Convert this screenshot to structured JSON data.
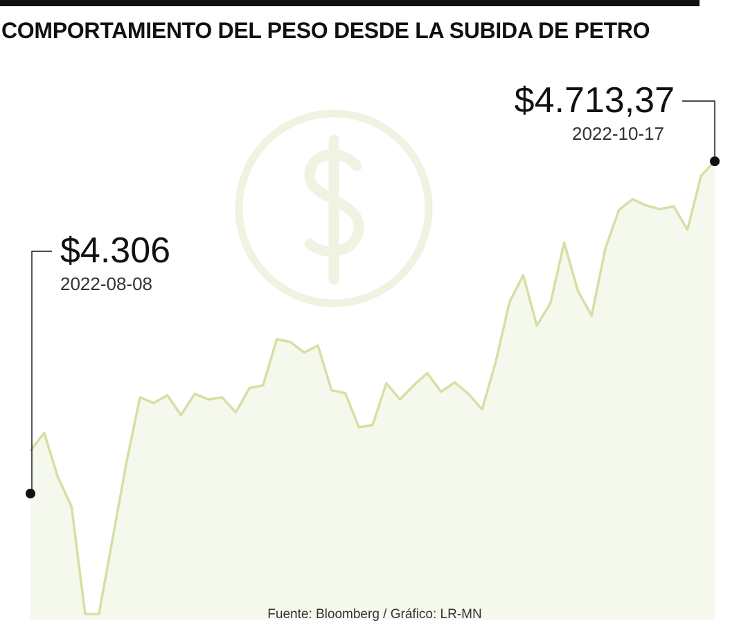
{
  "header": {
    "title": "COMPORTAMIENTO DEL PESO DESDE LA SUBIDA DE PETRO"
  },
  "footer": {
    "source": "Fuente: Bloomberg / Gráfico: LR-MN"
  },
  "annotations": {
    "start": {
      "value": "$4.306",
      "date": "2022-08-08"
    },
    "end": {
      "value": "$4.713,37",
      "date": "2022-10-17"
    }
  },
  "colors": {
    "line": "#d4e0a4",
    "fill": "#f5f8ec",
    "watermark": "#eef3e2",
    "text": "#111111"
  },
  "background_icon": "dollar-coin-icon",
  "chart_data": {
    "type": "area",
    "title": "COMPORTAMIENTO DEL PESO DESDE LA SUBIDA DE PETRO",
    "xlabel": "",
    "ylabel": "",
    "grid": false,
    "legend": "none",
    "ylim": [
      4060,
      4800
    ],
    "x": [
      "2022-08-08",
      "2022-08-09",
      "2022-08-10",
      "2022-08-11",
      "2022-08-12",
      "2022-08-15",
      "2022-08-16",
      "2022-08-17",
      "2022-08-18",
      "2022-08-19",
      "2022-08-22",
      "2022-08-23",
      "2022-08-24",
      "2022-08-25",
      "2022-08-26",
      "2022-08-29",
      "2022-08-30",
      "2022-08-31",
      "2022-09-01",
      "2022-09-02",
      "2022-09-05",
      "2022-09-06",
      "2022-09-07",
      "2022-09-08",
      "2022-09-09",
      "2022-09-12",
      "2022-09-13",
      "2022-09-14",
      "2022-09-15",
      "2022-09-16",
      "2022-09-19",
      "2022-09-20",
      "2022-09-21",
      "2022-09-22",
      "2022-09-23",
      "2022-09-26",
      "2022-09-27",
      "2022-09-28",
      "2022-09-29",
      "2022-09-30",
      "2022-10-03",
      "2022-10-04",
      "2022-10-05",
      "2022-10-06",
      "2022-10-07",
      "2022-10-10",
      "2022-10-11",
      "2022-10-12",
      "2022-10-13",
      "2022-10-14",
      "2022-10-17"
    ],
    "values": [
      4306,
      4331,
      4269,
      4227,
      4076,
      4076,
      4182,
      4288,
      4381,
      4373,
      4384,
      4356,
      4386,
      4378,
      4381,
      4360,
      4394,
      4398,
      4463,
      4459,
      4444,
      4454,
      4391,
      4387,
      4339,
      4342,
      4401,
      4378,
      4398,
      4415,
      4389,
      4402,
      4386,
      4364,
      4431,
      4515,
      4553,
      4482,
      4514,
      4599,
      4531,
      4496,
      4590,
      4645,
      4660,
      4651,
      4646,
      4650,
      4617,
      4693,
      4713.37
    ],
    "annotations": [
      {
        "x": "2022-08-08",
        "label": "$4.306",
        "date": "2022-08-08"
      },
      {
        "x": "2022-10-17",
        "label": "$4.713,37",
        "date": "2022-10-17"
      }
    ]
  }
}
